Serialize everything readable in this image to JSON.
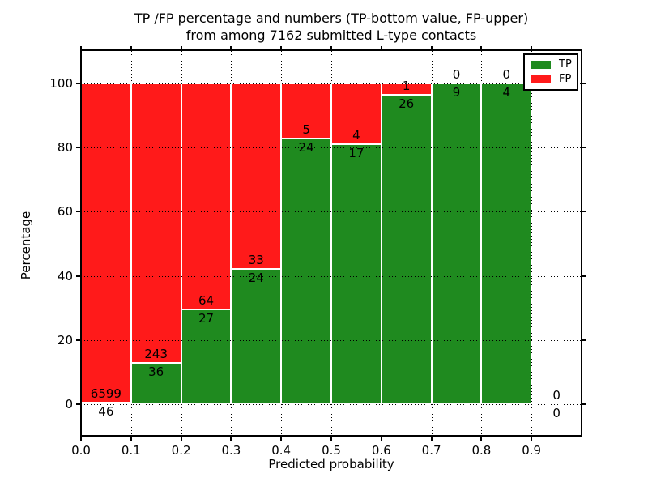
{
  "chart_data": {
    "type": "bar",
    "stacked": true,
    "title_line1": "TP /FP percentage and numbers (TP-bottom value, FP-upper)",
    "title_line2": "from among 7162 submitted L-type contacts",
    "total_submitted_contacts": 7162,
    "xlabel": "Predicted probability",
    "ylabel": "Percentage",
    "xlim": [
      0.0,
      1.0
    ],
    "ylim": [
      -10,
      110
    ],
    "xtick_labels": [
      "0.0",
      "0.1",
      "0.2",
      "0.3",
      "0.4",
      "0.5",
      "0.6",
      "0.7",
      "0.8",
      "0.9"
    ],
    "ytick_values": [
      0,
      20,
      40,
      60,
      80,
      100
    ],
    "grid": "dotted",
    "legend_position": "upper right",
    "legend": [
      {
        "name": "TP",
        "color": "#1f8a1f"
      },
      {
        "name": "FP",
        "color": "#ff1a1a"
      }
    ],
    "colors": {
      "tp": "#1f8a1f",
      "fp": "#ff1a1a",
      "background": "#ffffff",
      "text": "#000000"
    },
    "bins": [
      {
        "range": [
          0.0,
          0.1
        ],
        "tp": 46,
        "fp": 6599,
        "tp_pct": 0.7,
        "fp_pct": 99.3
      },
      {
        "range": [
          0.1,
          0.2
        ],
        "tp": 36,
        "fp": 243,
        "tp_pct": 12.9,
        "fp_pct": 87.1
      },
      {
        "range": [
          0.2,
          0.3
        ],
        "tp": 27,
        "fp": 64,
        "tp_pct": 29.7,
        "fp_pct": 70.3
      },
      {
        "range": [
          0.3,
          0.4
        ],
        "tp": 24,
        "fp": 33,
        "tp_pct": 42.1,
        "fp_pct": 57.9
      },
      {
        "range": [
          0.4,
          0.5
        ],
        "tp": 24,
        "fp": 5,
        "tp_pct": 82.8,
        "fp_pct": 17.2
      },
      {
        "range": [
          0.5,
          0.6
        ],
        "tp": 17,
        "fp": 4,
        "tp_pct": 81.0,
        "fp_pct": 19.0
      },
      {
        "range": [
          0.6,
          0.7
        ],
        "tp": 26,
        "fp": 1,
        "tp_pct": 96.3,
        "fp_pct": 3.7
      },
      {
        "range": [
          0.7,
          0.8
        ],
        "tp": 9,
        "fp": 0,
        "tp_pct": 100.0,
        "fp_pct": 0.0
      },
      {
        "range": [
          0.8,
          0.9
        ],
        "tp": 4,
        "fp": 0,
        "tp_pct": 100.0,
        "fp_pct": 0.0
      },
      {
        "range": [
          0.9,
          1.0
        ],
        "tp": 0,
        "fp": 0,
        "tp_pct": 0.0,
        "fp_pct": 0.0
      }
    ]
  }
}
